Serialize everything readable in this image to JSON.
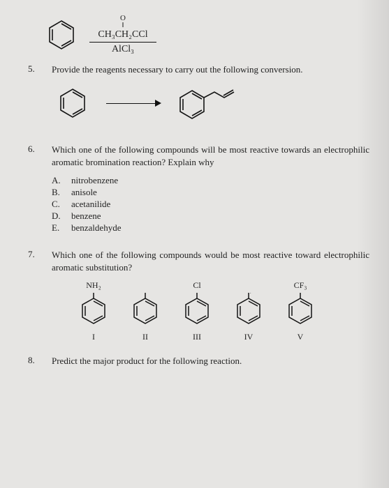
{
  "q4": {
    "reagent_top": "CH₃CH₂CCl",
    "reagent_o": "O",
    "reagent_dbl": "‖",
    "reagent_bot": "AlCl₃"
  },
  "q5": {
    "num": "5.",
    "text": "Provide the reagents necessary to carry out the following conversion."
  },
  "q6": {
    "num": "6.",
    "text": "Which one of the following compounds will be most reactive towards an electrophilic aromatic bromination reaction? Explain why",
    "opts": [
      {
        "l": "A.",
        "t": "nitrobenzene"
      },
      {
        "l": "B.",
        "t": "anisole"
      },
      {
        "l": "C.",
        "t": "acetanilide"
      },
      {
        "l": "D.",
        "t": "benzene"
      },
      {
        "l": "E.",
        "t": "benzaldehyde"
      }
    ]
  },
  "q7": {
    "num": "7.",
    "text": "Which one of the following compounds would be most reactive toward electrophilic aromatic substitution?",
    "groups": [
      "NH₂",
      "",
      "Cl",
      "",
      "CF₃"
    ],
    "labels": [
      "I",
      "II",
      "III",
      "IV",
      "V"
    ]
  },
  "q8": {
    "num": "8.",
    "text": "Predict the major product for the following reaction."
  },
  "colors": {
    "ink": "#161616",
    "ring": "#141414"
  },
  "hex": {
    "r": 19
  }
}
